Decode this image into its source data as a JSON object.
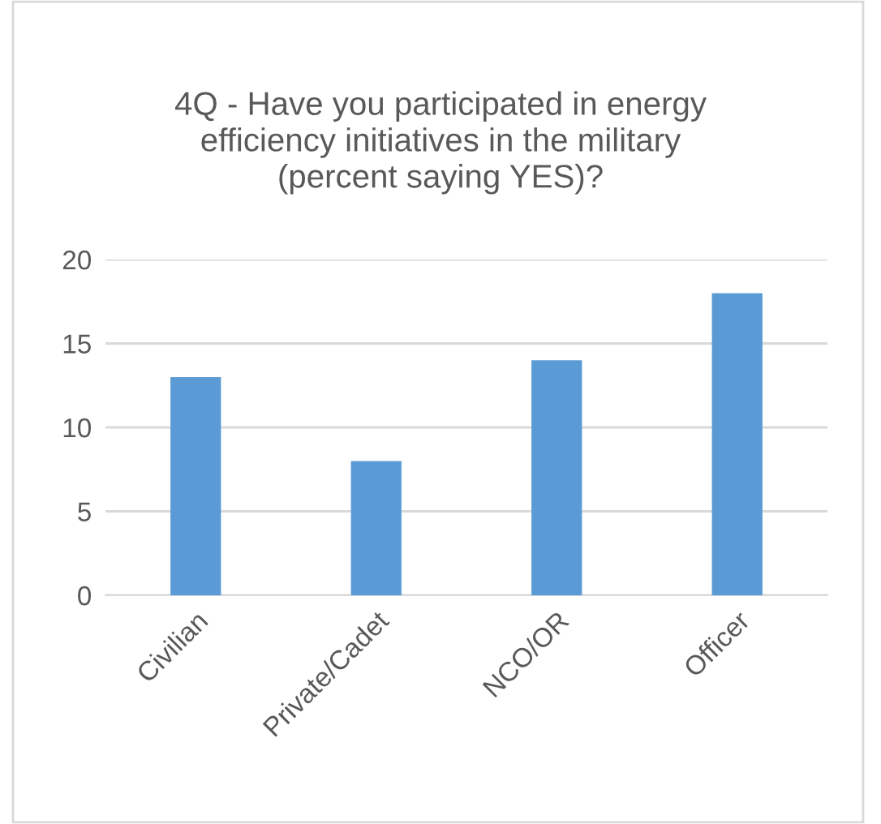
{
  "chart_data": {
    "type": "bar",
    "title": "4Q - Have you participated in energy\nefficiency initiatives in the military\n(percent saying YES)?",
    "categories": [
      "Civilian",
      "Private/Cadet",
      "NCO/OR",
      "Officer"
    ],
    "values": [
      13,
      8,
      14,
      18
    ],
    "color": "#5b9bd5",
    "ylim": [
      0,
      20
    ],
    "yticks": [
      0,
      5,
      10,
      15,
      20
    ],
    "grid": "y",
    "legend": false
  }
}
